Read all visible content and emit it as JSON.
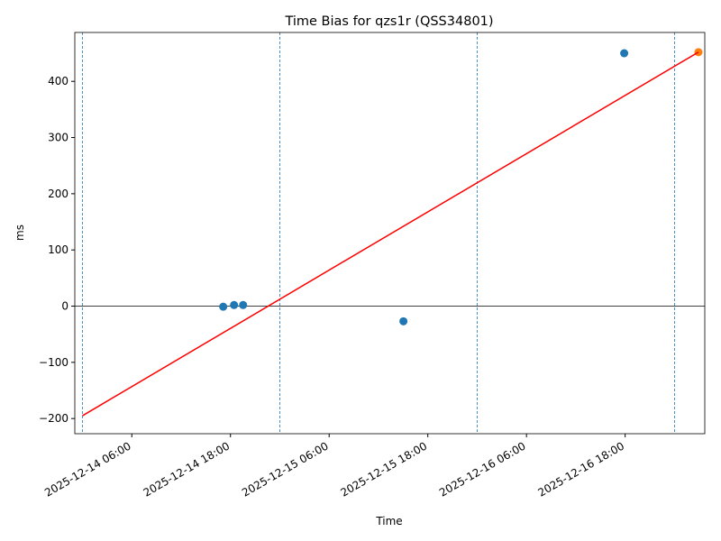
{
  "chart_data": {
    "type": "scatter",
    "title": "Time Bias for qzs1r (QSS34801)",
    "xlabel": "Time",
    "ylabel": "ms",
    "xlim": [
      "2025-12-13 23:04",
      "2025-12-17 03:41"
    ],
    "xticks": [
      "2025-12-14 06:00",
      "2025-12-14 18:00",
      "2025-12-15 06:00",
      "2025-12-15 18:00",
      "2025-12-16 06:00",
      "2025-12-16 18:00"
    ],
    "ylim": [
      -227,
      487
    ],
    "yticks": [
      {
        "value": -200,
        "label": "−200"
      },
      {
        "value": -100,
        "label": "−100"
      },
      0,
      100,
      200,
      300,
      400
    ],
    "hline": 0,
    "vlines": [
      "2025-12-14 00:00",
      "2025-12-15 00:00",
      "2025-12-16 00:00",
      "2025-12-17 00:00"
    ],
    "series": [
      {
        "kind": "points",
        "color": "#1f77b4",
        "x": [
          "2025-12-14 17:07",
          "2025-12-14 18:26",
          "2025-12-14 19:32",
          "2025-12-15 15:02",
          "2025-12-16 17:53"
        ],
        "values": [
          -1,
          2,
          2,
          -27,
          450
        ]
      },
      {
        "kind": "points",
        "color": "#ff7f0e",
        "x": [
          "2025-12-17 02:55"
        ],
        "values": [
          452
        ]
      },
      {
        "kind": "line",
        "color": "#ff0000",
        "x": [
          "2025-12-14 00:00",
          "2025-12-17 02:55"
        ],
        "values": [
          -195,
          452
        ]
      }
    ]
  }
}
